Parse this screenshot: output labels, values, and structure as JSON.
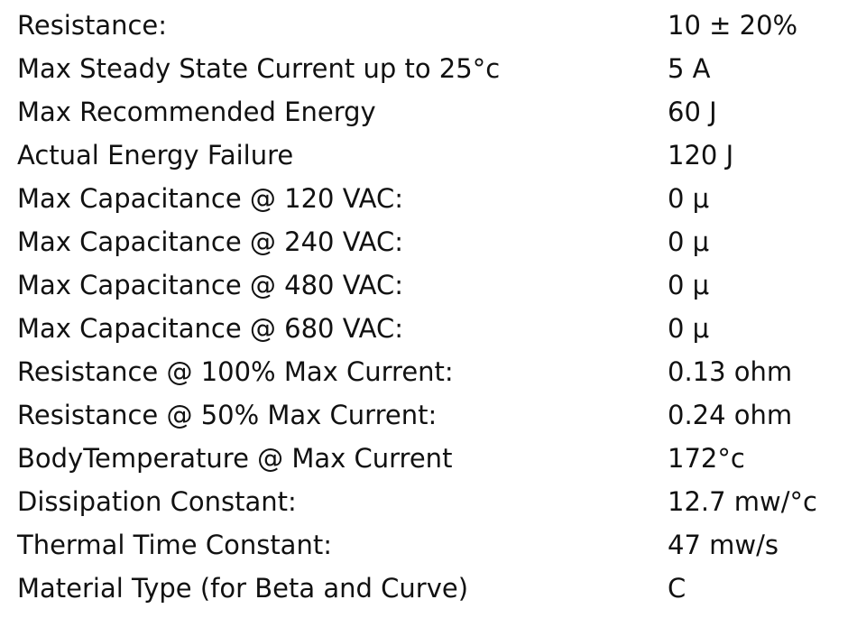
{
  "table": {
    "rows": [
      [
        "Resistance:",
        "10 ± 20%"
      ],
      [
        "Max Steady State Current up to 25°c",
        "5 A"
      ],
      [
        "Max Recommended Energy",
        "60 J"
      ],
      [
        "Actual Energy Failure",
        "120 J"
      ],
      [
        "Max Capacitance @ 120 VAC:",
        "0 μ"
      ],
      [
        "Max Capacitance @ 240 VAC:",
        "0 μ"
      ],
      [
        "Max Capacitance @ 480 VAC:",
        "0 μ"
      ],
      [
        "Max Capacitance @ 680 VAC:",
        "0 μ"
      ],
      [
        "Resistance @ 100% Max Current:",
        "0.13 ohm"
      ],
      [
        "Resistance @ 50% Max Current:",
        "0.24 ohm"
      ],
      [
        "BodyTemperature @ Max Current",
        "172°c"
      ],
      [
        "Dissipation Constant:",
        "12.7 mw/°c"
      ],
      [
        "Thermal Time Constant:",
        "47 mw/s"
      ],
      [
        "Material Type (for Beta and Curve)",
        "C"
      ]
    ]
  }
}
